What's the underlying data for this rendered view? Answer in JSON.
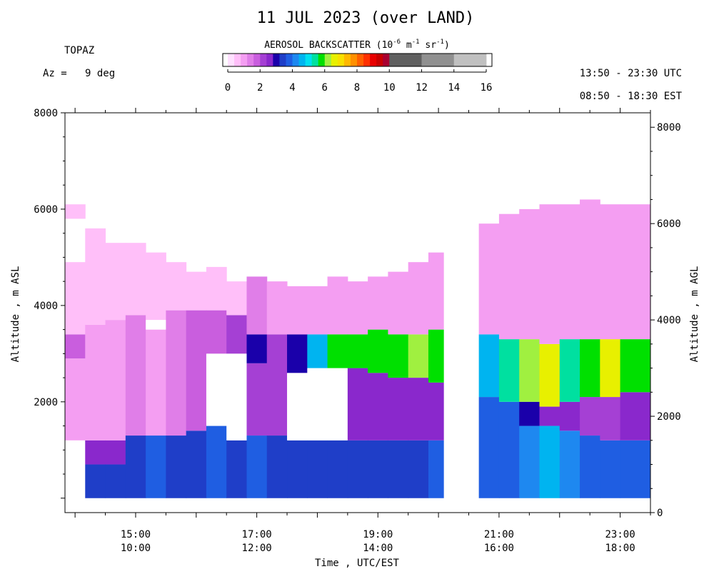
{
  "chart_data": {
    "type": "heatmap",
    "title": "11 JUL 2023 (over LAND)",
    "instrument": "TOPAZ",
    "azimuth": "Az =   9 deg",
    "time_range_utc": "13:50 - 23:30 UTC",
    "time_range_est": "08:50 - 18:30 EST",
    "colorbar": {
      "title": "AEROSOL BACKSCATTER",
      "title_units": "(10",
      "title_exp1": "-6",
      "title_mid": " m",
      "title_exp2": "-1",
      "title_sr": " sr",
      "title_exp3": "-1",
      "title_close": ")",
      "range": [
        0,
        16
      ],
      "ticks": [
        "0",
        "2",
        "4",
        "6",
        "8",
        "10",
        "12",
        "14",
        "16"
      ],
      "bins": [
        {
          "from": 0.0,
          "to": 0.4,
          "color": "#ffe0ff"
        },
        {
          "from": 0.4,
          "to": 0.8,
          "color": "#ffbff9"
        },
        {
          "from": 0.8,
          "to": 1.2,
          "color": "#f49ef2"
        },
        {
          "from": 1.2,
          "to": 1.6,
          "color": "#e07ee8"
        },
        {
          "from": 1.6,
          "to": 2.0,
          "color": "#c95ede"
        },
        {
          "from": 2.0,
          "to": 2.4,
          "color": "#a540d4"
        },
        {
          "from": 2.4,
          "to": 2.8,
          "color": "#8a28cc"
        },
        {
          "from": 2.8,
          "to": 3.2,
          "color": "#1a00aa"
        },
        {
          "from": 3.2,
          "to": 3.6,
          "color": "#1f3ec8"
        },
        {
          "from": 3.6,
          "to": 4.0,
          "color": "#1f5ee2"
        },
        {
          "from": 4.0,
          "to": 4.4,
          "color": "#1e88f0"
        },
        {
          "from": 4.4,
          "to": 4.8,
          "color": "#00b4f0"
        },
        {
          "from": 4.8,
          "to": 5.2,
          "color": "#00e0f0"
        },
        {
          "from": 5.2,
          "to": 5.6,
          "color": "#00e0a0"
        },
        {
          "from": 5.6,
          "to": 6.0,
          "color": "#00e000"
        },
        {
          "from": 6.0,
          "to": 6.4,
          "color": "#a0f040"
        },
        {
          "from": 6.4,
          "to": 6.8,
          "color": "#e8f000"
        },
        {
          "from": 6.8,
          "to": 7.2,
          "color": "#f8e000"
        },
        {
          "from": 7.2,
          "to": 7.6,
          "color": "#ffb800"
        },
        {
          "from": 7.6,
          "to": 8.0,
          "color": "#ff9000"
        },
        {
          "from": 8.0,
          "to": 8.4,
          "color": "#ff6000"
        },
        {
          "from": 8.4,
          "to": 8.8,
          "color": "#ff3000"
        },
        {
          "from": 8.8,
          "to": 9.2,
          "color": "#e80000"
        },
        {
          "from": 9.2,
          "to": 9.6,
          "color": "#c80000"
        },
        {
          "from": 9.6,
          "to": 10.0,
          "color": "#a80030"
        },
        {
          "from": 10.0,
          "to": 12.0,
          "color": "#606060"
        },
        {
          "from": 12.0,
          "to": 14.0,
          "color": "#909090"
        },
        {
          "from": 14.0,
          "to": 16.0,
          "color": "#c0c0c0"
        }
      ]
    },
    "x_axis": {
      "label": "Time , UTC/EST",
      "range_hours_utc": [
        "13:50",
        "23:30"
      ],
      "major_ticks": [
        {
          "utc": "15:00",
          "est": "10:00"
        },
        {
          "utc": "17:00",
          "est": "12:00"
        },
        {
          "utc": "19:00",
          "est": "14:00"
        },
        {
          "utc": "21:00",
          "est": "16:00"
        },
        {
          "utc": "23:00",
          "est": "18:00"
        }
      ]
    },
    "y_axis_left": {
      "label": "Altitude , m ASL",
      "range": [
        -300,
        8000
      ],
      "ticks": [
        "2000",
        "4000",
        "6000",
        "8000"
      ]
    },
    "y_axis_right": {
      "label": "Altitude , m AGL",
      "range": [
        0,
        8300
      ],
      "ticks": [
        "0",
        "2000",
        "4000",
        "6000",
        "8000"
      ]
    },
    "data_gap_utc": [
      "20:05",
      "20:40"
    ],
    "profiles": [
      {
        "start": "13:50",
        "end": "14:10",
        "bottom": 1200,
        "top": 4900,
        "layers": [
          {
            "from": 1200,
            "to": 2900,
            "value": 0.8
          },
          {
            "from": 2900,
            "to": 3400,
            "value": 1.6
          },
          {
            "from": 3400,
            "to": 4900,
            "value": 0.6
          },
          {
            "from": 5800,
            "to": 6100,
            "value": 0.6
          }
        ]
      },
      {
        "start": "14:10",
        "end": "14:30",
        "bottom": 0,
        "top": 5600,
        "layers": [
          {
            "from": 0,
            "to": 700,
            "value": 3.4
          },
          {
            "from": 700,
            "to": 1200,
            "value": 2.6
          },
          {
            "from": 1200,
            "to": 3600,
            "value": 0.9
          },
          {
            "from": 3600,
            "to": 5600,
            "value": 0.6
          }
        ]
      },
      {
        "start": "14:30",
        "end": "14:50",
        "bottom": 0,
        "top": 5300,
        "layers": [
          {
            "from": 0,
            "to": 700,
            "value": 3.4
          },
          {
            "from": 700,
            "to": 1200,
            "value": 2.6
          },
          {
            "from": 1200,
            "to": 3700,
            "value": 0.9
          },
          {
            "from": 3700,
            "to": 5300,
            "value": 0.6
          }
        ]
      },
      {
        "start": "14:50",
        "end": "15:10",
        "bottom": 0,
        "top": 5300,
        "layers": [
          {
            "from": 0,
            "to": 1300,
            "value": 3.4
          },
          {
            "from": 1300,
            "to": 3800,
            "value": 1.2
          },
          {
            "from": 3800,
            "to": 5300,
            "value": 0.6
          }
        ]
      },
      {
        "start": "15:10",
        "end": "15:30",
        "bottom": 0,
        "top": 5100,
        "layers": [
          {
            "from": 0,
            "to": 1300,
            "value": 3.6
          },
          {
            "from": 1300,
            "to": 3500,
            "value": 1.0
          },
          {
            "from": 3500,
            "to": 3700,
            "value": 0.0
          },
          {
            "from": 3700,
            "to": 5100,
            "value": 0.6
          }
        ]
      },
      {
        "start": "15:30",
        "end": "15:50",
        "bottom": 0,
        "top": 4900,
        "layers": [
          {
            "from": 0,
            "to": 1300,
            "value": 3.4
          },
          {
            "from": 1300,
            "to": 3900,
            "value": 1.4
          },
          {
            "from": 3900,
            "to": 4900,
            "value": 0.6
          }
        ]
      },
      {
        "start": "15:50",
        "end": "16:10",
        "bottom": 0,
        "top": 4700,
        "layers": [
          {
            "from": 0,
            "to": 1400,
            "value": 3.4
          },
          {
            "from": 1400,
            "to": 3900,
            "value": 1.6
          },
          {
            "from": 3900,
            "to": 4700,
            "value": 0.6
          }
        ]
      },
      {
        "start": "16:10",
        "end": "16:30",
        "bottom": 0,
        "top": 4800,
        "layers": [
          {
            "from": 0,
            "to": 1500,
            "value": 3.6
          },
          {
            "from": 1500,
            "to": 3000,
            "value": 0.0
          },
          {
            "from": 3000,
            "to": 3900,
            "value": 1.8
          },
          {
            "from": 3900,
            "to": 4800,
            "value": 0.6
          }
        ]
      },
      {
        "start": "16:30",
        "end": "16:50",
        "bottom": 0,
        "top": 4500,
        "layers": [
          {
            "from": 0,
            "to": 1200,
            "value": 3.4
          },
          {
            "from": 1200,
            "to": 3000,
            "value": 0.0
          },
          {
            "from": 3000,
            "to": 3800,
            "value": 2.0
          },
          {
            "from": 3800,
            "to": 4500,
            "value": 0.6
          }
        ]
      },
      {
        "start": "16:50",
        "end": "17:10",
        "bottom": 0,
        "top": 4600,
        "layers": [
          {
            "from": 0,
            "to": 1300,
            "value": 3.6
          },
          {
            "from": 1300,
            "to": 2800,
            "value": 2.2
          },
          {
            "from": 2800,
            "to": 3400,
            "value": 3.0
          },
          {
            "from": 3400,
            "to": 4600,
            "value": 1.4
          }
        ]
      },
      {
        "start": "17:10",
        "end": "17:30",
        "bottom": 0,
        "top": 4500,
        "layers": [
          {
            "from": 0,
            "to": 1300,
            "value": 3.4
          },
          {
            "from": 1300,
            "to": 3400,
            "value": 2.2
          },
          {
            "from": 3400,
            "to": 4500,
            "value": 1.0
          }
        ]
      },
      {
        "start": "17:30",
        "end": "17:50",
        "bottom": 0,
        "top": 4400,
        "layers": [
          {
            "from": 0,
            "to": 1200,
            "value": 3.4
          },
          {
            "from": 1200,
            "to": 2600,
            "value": 0.0
          },
          {
            "from": 2600,
            "to": 3400,
            "value": 3.0
          },
          {
            "from": 3400,
            "to": 4400,
            "value": 1.0
          }
        ]
      },
      {
        "start": "17:50",
        "end": "18:10",
        "bottom": 0,
        "top": 4400,
        "layers": [
          {
            "from": 0,
            "to": 1200,
            "value": 3.4
          },
          {
            "from": 1200,
            "to": 2700,
            "value": 0.0
          },
          {
            "from": 2700,
            "to": 3400,
            "value": 4.6
          },
          {
            "from": 3400,
            "to": 4400,
            "value": 1.0
          }
        ]
      },
      {
        "start": "18:10",
        "end": "18:30",
        "bottom": 0,
        "top": 4600,
        "layers": [
          {
            "from": 0,
            "to": 1200,
            "value": 3.4
          },
          {
            "from": 1200,
            "to": 2700,
            "value": 0.0
          },
          {
            "from": 2700,
            "to": 3400,
            "value": 5.6
          },
          {
            "from": 3400,
            "to": 4600,
            "value": 1.0
          }
        ]
      },
      {
        "start": "18:30",
        "end": "18:50",
        "bottom": 0,
        "top": 4500,
        "layers": [
          {
            "from": 0,
            "to": 1200,
            "value": 3.4
          },
          {
            "from": 1200,
            "to": 2700,
            "value": 2.6
          },
          {
            "from": 2700,
            "to": 3400,
            "value": 5.8
          },
          {
            "from": 3400,
            "to": 4500,
            "value": 1.0
          }
        ]
      },
      {
        "start": "18:50",
        "end": "19:10",
        "bottom": 0,
        "top": 4600,
        "layers": [
          {
            "from": 0,
            "to": 1200,
            "value": 3.4
          },
          {
            "from": 1200,
            "to": 2600,
            "value": 2.6
          },
          {
            "from": 2600,
            "to": 3500,
            "value": 5.6
          },
          {
            "from": 3500,
            "to": 4600,
            "value": 1.0
          }
        ]
      },
      {
        "start": "19:10",
        "end": "19:30",
        "bottom": 0,
        "top": 4700,
        "layers": [
          {
            "from": 0,
            "to": 1200,
            "value": 3.4
          },
          {
            "from": 1200,
            "to": 2500,
            "value": 2.6
          },
          {
            "from": 2500,
            "to": 3400,
            "value": 5.8
          },
          {
            "from": 3400,
            "to": 4700,
            "value": 1.0
          }
        ]
      },
      {
        "start": "19:30",
        "end": "19:50",
        "bottom": 0,
        "top": 4900,
        "layers": [
          {
            "from": 0,
            "to": 1200,
            "value": 3.4
          },
          {
            "from": 1200,
            "to": 2500,
            "value": 2.6
          },
          {
            "from": 2500,
            "to": 3400,
            "value": 6.2
          },
          {
            "from": 3400,
            "to": 4900,
            "value": 1.0
          }
        ]
      },
      {
        "start": "19:50",
        "end": "20:05",
        "bottom": 0,
        "top": 5100,
        "layers": [
          {
            "from": 0,
            "to": 1200,
            "value": 3.6
          },
          {
            "from": 1200,
            "to": 2400,
            "value": 2.6
          },
          {
            "from": 2400,
            "to": 3500,
            "value": 5.8
          },
          {
            "from": 3500,
            "to": 5100,
            "value": 1.0
          }
        ]
      },
      {
        "start": "20:40",
        "end": "21:00",
        "bottom": 0,
        "top": 5700,
        "layers": [
          {
            "from": 0,
            "to": 2100,
            "value": 3.6
          },
          {
            "from": 2100,
            "to": 3400,
            "value": 4.4
          },
          {
            "from": 3400,
            "to": 5700,
            "value": 0.8
          }
        ]
      },
      {
        "start": "21:00",
        "end": "21:20",
        "bottom": 0,
        "top": 5900,
        "layers": [
          {
            "from": 0,
            "to": 2000,
            "value": 3.6
          },
          {
            "from": 2000,
            "to": 3300,
            "value": 5.2
          },
          {
            "from": 3300,
            "to": 5900,
            "value": 0.8
          }
        ]
      },
      {
        "start": "21:20",
        "end": "21:40",
        "bottom": 0,
        "top": 6000,
        "layers": [
          {
            "from": 0,
            "to": 1500,
            "value": 4.2
          },
          {
            "from": 1500,
            "to": 2000,
            "value": 3.0
          },
          {
            "from": 2000,
            "to": 3300,
            "value": 6.0
          },
          {
            "from": 3300,
            "to": 6000,
            "value": 0.8
          }
        ]
      },
      {
        "start": "21:40",
        "end": "22:00",
        "bottom": 0,
        "top": 6100,
        "layers": [
          {
            "from": 0,
            "to": 1500,
            "value": 4.6
          },
          {
            "from": 1500,
            "to": 1900,
            "value": 2.6
          },
          {
            "from": 1900,
            "to": 3200,
            "value": 6.6
          },
          {
            "from": 3200,
            "to": 6100,
            "value": 0.8
          }
        ]
      },
      {
        "start": "22:00",
        "end": "22:20",
        "bottom": 0,
        "top": 6100,
        "layers": [
          {
            "from": 0,
            "to": 1400,
            "value": 4.0
          },
          {
            "from": 1400,
            "to": 2000,
            "value": 2.4
          },
          {
            "from": 2000,
            "to": 3300,
            "value": 5.4
          },
          {
            "from": 3300,
            "to": 6100,
            "value": 0.8
          }
        ]
      },
      {
        "start": "22:20",
        "end": "22:40",
        "bottom": 0,
        "top": 6200,
        "layers": [
          {
            "from": 0,
            "to": 1300,
            "value": 3.8
          },
          {
            "from": 1300,
            "to": 2100,
            "value": 2.2
          },
          {
            "from": 2100,
            "to": 3300,
            "value": 5.8
          },
          {
            "from": 3300,
            "to": 6200,
            "value": 0.8
          }
        ]
      },
      {
        "start": "22:40",
        "end": "23:00",
        "bottom": 0,
        "top": 6100,
        "layers": [
          {
            "from": 0,
            "to": 1200,
            "value": 3.8
          },
          {
            "from": 1200,
            "to": 2100,
            "value": 2.2
          },
          {
            "from": 2100,
            "to": 3300,
            "value": 6.4
          },
          {
            "from": 3300,
            "to": 6100,
            "value": 0.8
          }
        ]
      },
      {
        "start": "23:00",
        "end": "23:30",
        "bottom": 0,
        "top": 6100,
        "layers": [
          {
            "from": 0,
            "to": 1200,
            "value": 3.8
          },
          {
            "from": 1200,
            "to": 2200,
            "value": 2.6
          },
          {
            "from": 2200,
            "to": 3300,
            "value": 5.8
          },
          {
            "from": 3300,
            "to": 6100,
            "value": 0.8
          }
        ]
      }
    ]
  }
}
